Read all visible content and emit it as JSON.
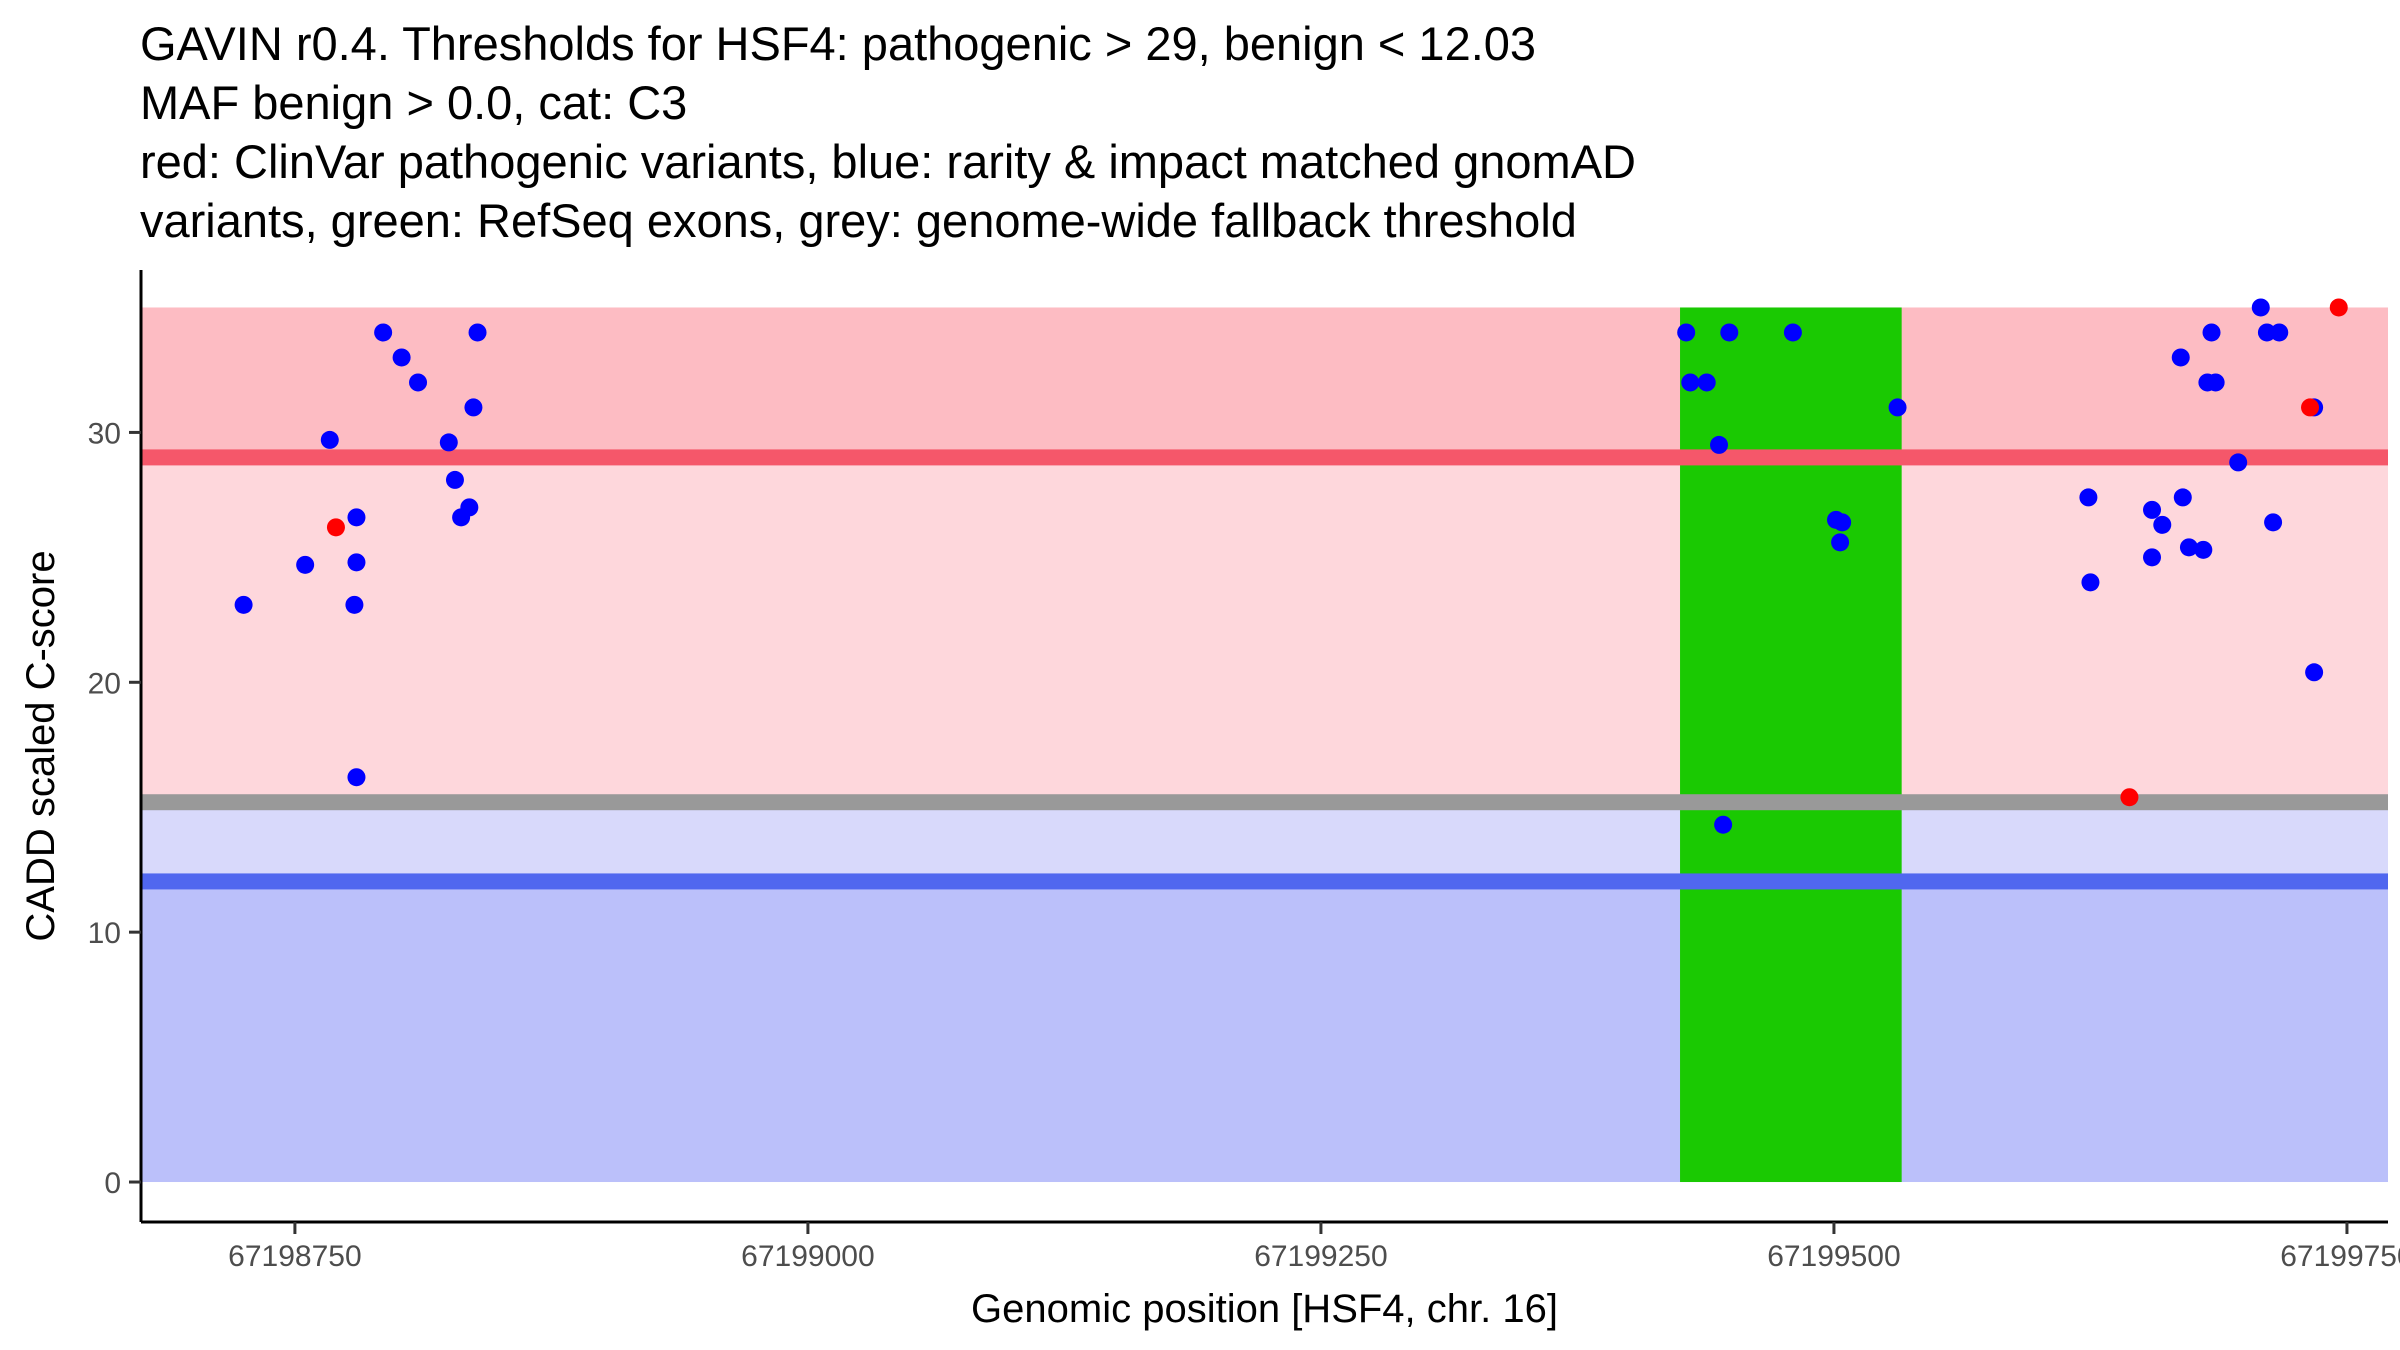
{
  "chart_data": {
    "type": "scatter",
    "title_lines": [
      "GAVIN r0.4. Thresholds for HSF4: pathogenic > 29, benign < 12.03",
      "MAF benign > 0.0, cat: C3",
      "red: ClinVar pathogenic variants, blue: rarity & impact matched gnomAD",
      "variants, green: RefSeq exons, grey: genome-wide fallback threshold"
    ],
    "xlabel": "Genomic position [HSF4, chr. 16]",
    "ylabel": "CADD scaled C-score",
    "xlim": [
      67198675,
      67199770
    ],
    "ylim": [
      -1.6,
      36.5
    ],
    "x_ticks": [
      67198750,
      67199000,
      67199250,
      67199500,
      67199750
    ],
    "x_tick_labels": [
      "67198750",
      "67199000",
      "67199250",
      "67199500",
      "67199750"
    ],
    "y_ticks": [
      0,
      10,
      20,
      30
    ],
    "y_tick_labels": [
      "0",
      "10",
      "20",
      "30"
    ],
    "region_x": [
      67198675,
      67199770
    ],
    "bands": [
      {
        "name": "pathogenic-zone",
        "y_from": 29,
        "y_to": 35,
        "color": "#fdbcc3"
      },
      {
        "name": "above-fallback-zone",
        "y_from": 15.2,
        "y_to": 29,
        "color": "#fed7dc"
      },
      {
        "name": "fallback-to-benign-zone",
        "y_from": 12.03,
        "y_to": 15.2,
        "color": "#d8d9fb"
      },
      {
        "name": "benign-zone",
        "y_from": 0,
        "y_to": 12.03,
        "color": "#bbc0fa"
      }
    ],
    "threshold_lines": [
      {
        "name": "pathogenic-threshold",
        "y": 29,
        "color": "#f5576a"
      },
      {
        "name": "fallback-threshold",
        "y": 15.2,
        "color": "#999999"
      },
      {
        "name": "benign-threshold",
        "y": 12.03,
        "color": "#5067ef"
      }
    ],
    "exons": [
      {
        "x_start": 67199425,
        "x_end": 67199533,
        "y_from": 0,
        "y_to": 35,
        "color": "#1ac902"
      }
    ],
    "series": [
      {
        "name": "ClinVar pathogenic variants",
        "color": "#ff0000",
        "points": [
          {
            "x": 67198770,
            "y": 26.2
          },
          {
            "x": 67199644,
            "y": 15.4
          },
          {
            "x": 67199732,
            "y": 31.0
          },
          {
            "x": 67199746,
            "y": 35.0
          }
        ]
      },
      {
        "name": "rarity & impact matched gnomAD variants",
        "color": "#0000ff",
        "points": [
          {
            "x": 67198725,
            "y": 23.1
          },
          {
            "x": 67198755,
            "y": 24.7
          },
          {
            "x": 67198767,
            "y": 29.7
          },
          {
            "x": 67198780,
            "y": 26.6
          },
          {
            "x": 67198780,
            "y": 24.8
          },
          {
            "x": 67198779,
            "y": 23.1
          },
          {
            "x": 67198780,
            "y": 16.2
          },
          {
            "x": 67198793,
            "y": 34.0
          },
          {
            "x": 67198802,
            "y": 33.0
          },
          {
            "x": 67198810,
            "y": 32.0
          },
          {
            "x": 67198825,
            "y": 29.6
          },
          {
            "x": 67198828,
            "y": 28.1
          },
          {
            "x": 67198831,
            "y": 26.6
          },
          {
            "x": 67198835,
            "y": 27.0
          },
          {
            "x": 67198837,
            "y": 31.0
          },
          {
            "x": 67198839,
            "y": 34.0
          },
          {
            "x": 67199428,
            "y": 34.0
          },
          {
            "x": 67199430,
            "y": 32.0
          },
          {
            "x": 67199438,
            "y": 32.0
          },
          {
            "x": 67199444,
            "y": 29.5
          },
          {
            "x": 67199446,
            "y": 14.3
          },
          {
            "x": 67199449,
            "y": 34.0
          },
          {
            "x": 67199480,
            "y": 34.0
          },
          {
            "x": 67199501,
            "y": 26.5
          },
          {
            "x": 67199504,
            "y": 26.4
          },
          {
            "x": 67199503,
            "y": 25.6
          },
          {
            "x": 67199531,
            "y": 31.0
          },
          {
            "x": 67199624,
            "y": 27.4
          },
          {
            "x": 67199625,
            "y": 24.0
          },
          {
            "x": 67199655,
            "y": 26.9
          },
          {
            "x": 67199655,
            "y": 25.0
          },
          {
            "x": 67199660,
            "y": 26.3
          },
          {
            "x": 67199669,
            "y": 33.0
          },
          {
            "x": 67199670,
            "y": 27.4
          },
          {
            "x": 67199673,
            "y": 25.4
          },
          {
            "x": 67199680,
            "y": 25.3
          },
          {
            "x": 67199682,
            "y": 32.0
          },
          {
            "x": 67199684,
            "y": 34.0
          },
          {
            "x": 67199686,
            "y": 32.0
          },
          {
            "x": 67199697,
            "y": 28.8
          },
          {
            "x": 67199708,
            "y": 35.0
          },
          {
            "x": 67199711,
            "y": 34.0
          },
          {
            "x": 67199714,
            "y": 26.4
          },
          {
            "x": 67199717,
            "y": 34.0
          },
          {
            "x": 67199734,
            "y": 31.0
          },
          {
            "x": 67199734,
            "y": 20.4
          }
        ]
      }
    ]
  }
}
